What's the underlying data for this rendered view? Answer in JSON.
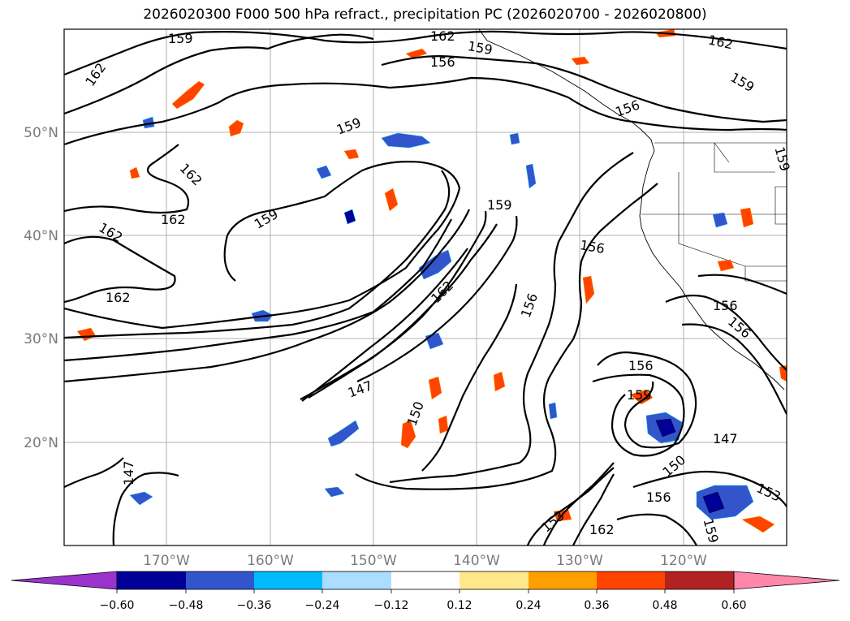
{
  "title": "2026020300 F000 500 hPa refract., precipitation PC (2026020700 - 2026020800)",
  "map": {
    "lat_labels": [
      "50°N",
      "40°N",
      "30°N",
      "20°N"
    ],
    "lon_labels": [
      "170°W",
      "160°W",
      "150°W",
      "140°W",
      "130°W",
      "120°W"
    ],
    "contour_labels": [
      "159",
      "162",
      "162",
      "156",
      "159",
      "162",
      "159",
      "156",
      "159",
      "162",
      "162",
      "159",
      "159",
      "162",
      "162",
      "159",
      "156",
      "162",
      "156",
      "156",
      "156",
      "147",
      "150",
      "159",
      "150",
      "147",
      "156",
      "153",
      "153",
      "162",
      "159",
      "147",
      "156"
    ]
  },
  "colorbar": {
    "ticks": [
      "−0.60",
      "−0.48",
      "−0.36",
      "−0.24",
      "−0.12",
      "0.12",
      "0.24",
      "0.36",
      "0.48",
      "0.60"
    ],
    "colors": [
      "#9933cc",
      "#000099",
      "#3355cc",
      "#00bbff",
      "#aaddff",
      "#ffffff",
      "#ffe88a",
      "#ffa000",
      "#ff4400",
      "#b22222",
      "#ff88aa"
    ]
  }
}
